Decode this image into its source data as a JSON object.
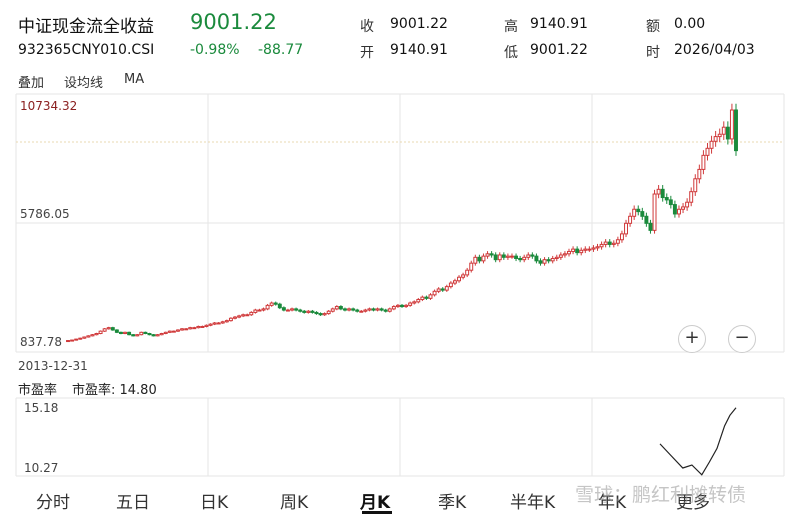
{
  "header": {
    "name": "中证现金流全收益",
    "price": "9001.22",
    "code": "932365CNY010.CSI",
    "change_pct": "-0.98%",
    "change": "-88.77"
  },
  "stats": {
    "close_label": "收",
    "close": "9001.22",
    "high_label": "高",
    "high": "9140.91",
    "amount_label": "额",
    "amount": "0.00",
    "open_label": "开",
    "open": "9140.91",
    "low_label": "低",
    "low": "9001.22",
    "time_label": "时",
    "time": "2026/04/03"
  },
  "toolbar": {
    "overlay": "叠加",
    "set_ma": "设均线",
    "ma": "MA"
  },
  "main_axis": {
    "max": "10734.32",
    "mid": "5786.05",
    "min": "837.78",
    "start_date": "2013-12-31"
  },
  "zoom": {
    "in": "+",
    "out": "−"
  },
  "sub_chart": {
    "label": "市盈率",
    "value_label": "市盈率: 14.80",
    "max": "15.18",
    "min": "10.27"
  },
  "tabs": [
    "分时",
    "五日",
    "日K",
    "周K",
    "月K",
    "季K",
    "半年K",
    "年K",
    "更多"
  ],
  "active_tab": "月K",
  "watermark": "雪球：鹏红利摊转债",
  "colors": {
    "up": "#d0393a",
    "down": "#1a8a3c",
    "grid": "#e6e6e6"
  },
  "chart_data": {
    "type": "candlestick",
    "ylim": [
      837.78,
      10734.32
    ],
    "x_start": "2013-12-31",
    "x_end": "2026-04-03",
    "close": [
      900,
      920,
      960,
      1000,
      1050,
      1100,
      1150,
      1200,
      1300,
      1400,
      1450,
      1350,
      1250,
      1200,
      1250,
      1150,
      1100,
      1150,
      1250,
      1200,
      1150,
      1100,
      1150,
      1200,
      1250,
      1300,
      1300,
      1350,
      1400,
      1400,
      1450,
      1450,
      1500,
      1500,
      1550,
      1600,
      1650,
      1650,
      1700,
      1750,
      1850,
      1900,
      1950,
      2000,
      2000,
      2100,
      2200,
      2200,
      2250,
      2400,
      2500,
      2450,
      2300,
      2200,
      2200,
      2250,
      2200,
      2150,
      2100,
      2150,
      2100,
      2050,
      2000,
      2050,
      2150,
      2250,
      2350,
      2250,
      2200,
      2250,
      2200,
      2150,
      2150,
      2200,
      2250,
      2200,
      2250,
      2200,
      2150,
      2250,
      2350,
      2400,
      2350,
      2400,
      2500,
      2550,
      2650,
      2750,
      2700,
      2850,
      3000,
      3100,
      3050,
      3200,
      3350,
      3450,
      3600,
      3700,
      3900,
      4200,
      4450,
      4300,
      4500,
      4600,
      4550,
      4350,
      4550,
      4450,
      4500,
      4500,
      4400,
      4350,
      4450,
      4550,
      4500,
      4300,
      4200,
      4350,
      4300,
      4400,
      4450,
      4550,
      4600,
      4700,
      4800,
      4650,
      4750,
      4800,
      4800,
      4850,
      4900,
      5000,
      5100,
      5000,
      5050,
      5200,
      5450,
      5900,
      6200,
      6500,
      6400,
      6200,
      5900,
      5600,
      7150,
      7350,
      7000,
      6900,
      6700,
      6300,
      6500,
      6600,
      6800,
      7250,
      7800,
      8200,
      8800,
      9100,
      9400,
      9600,
      9700,
      10000,
      9500,
      10734,
      9001
    ],
    "pe": [
      {
        "x": 0,
        "v": 12.4
      },
      {
        "x": 0.15,
        "v": 11.6
      },
      {
        "x": 0.3,
        "v": 10.8
      },
      {
        "x": 0.42,
        "v": 11.0
      },
      {
        "x": 0.55,
        "v": 10.35
      },
      {
        "x": 0.65,
        "v": 11.2
      },
      {
        "x": 0.75,
        "v": 12.1
      },
      {
        "x": 0.85,
        "v": 13.6
      },
      {
        "x": 0.92,
        "v": 14.3
      },
      {
        "x": 1,
        "v": 14.8
      }
    ],
    "pe_ylim": [
      10.27,
      15.18
    ]
  }
}
